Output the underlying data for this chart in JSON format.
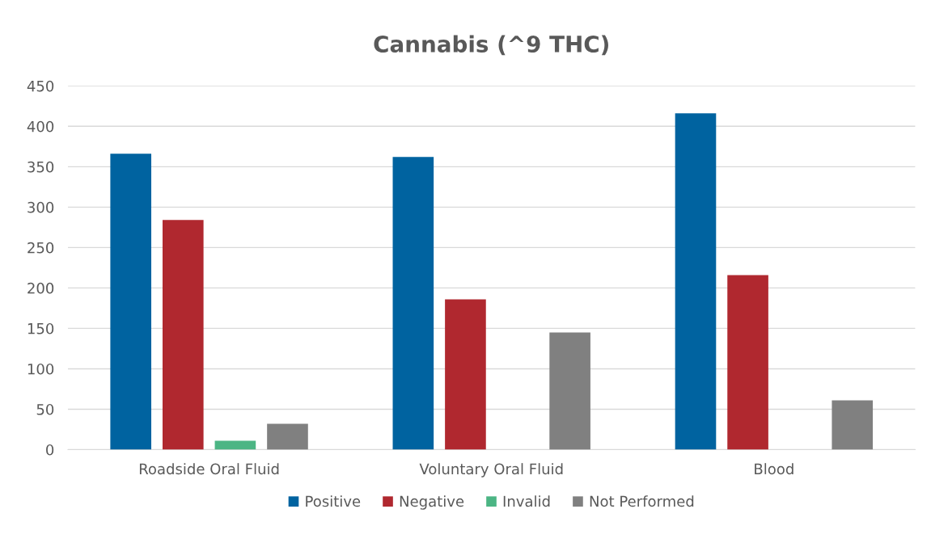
{
  "chart_data": {
    "type": "bar",
    "title": "Cannabis (^9 THC)",
    "categories": [
      "Roadside Oral Fluid",
      "Voluntary Oral Fluid",
      "Blood"
    ],
    "series": [
      {
        "name": "Positive",
        "color": "#0063a0",
        "values": [
          366,
          362,
          416
        ]
      },
      {
        "name": "Negative",
        "color": "#b0282f",
        "values": [
          284,
          186,
          216
        ]
      },
      {
        "name": "Invalid",
        "color": "#4cb584",
        "values": [
          11,
          0,
          0
        ]
      },
      {
        "name": "Not Performed",
        "color": "#808080",
        "values": [
          32,
          145,
          61
        ]
      }
    ],
    "ylim": [
      0,
      450
    ],
    "yticks": [
      0,
      50,
      100,
      150,
      200,
      250,
      300,
      350,
      400,
      450
    ],
    "grid": "y",
    "legend": "bottom"
  }
}
